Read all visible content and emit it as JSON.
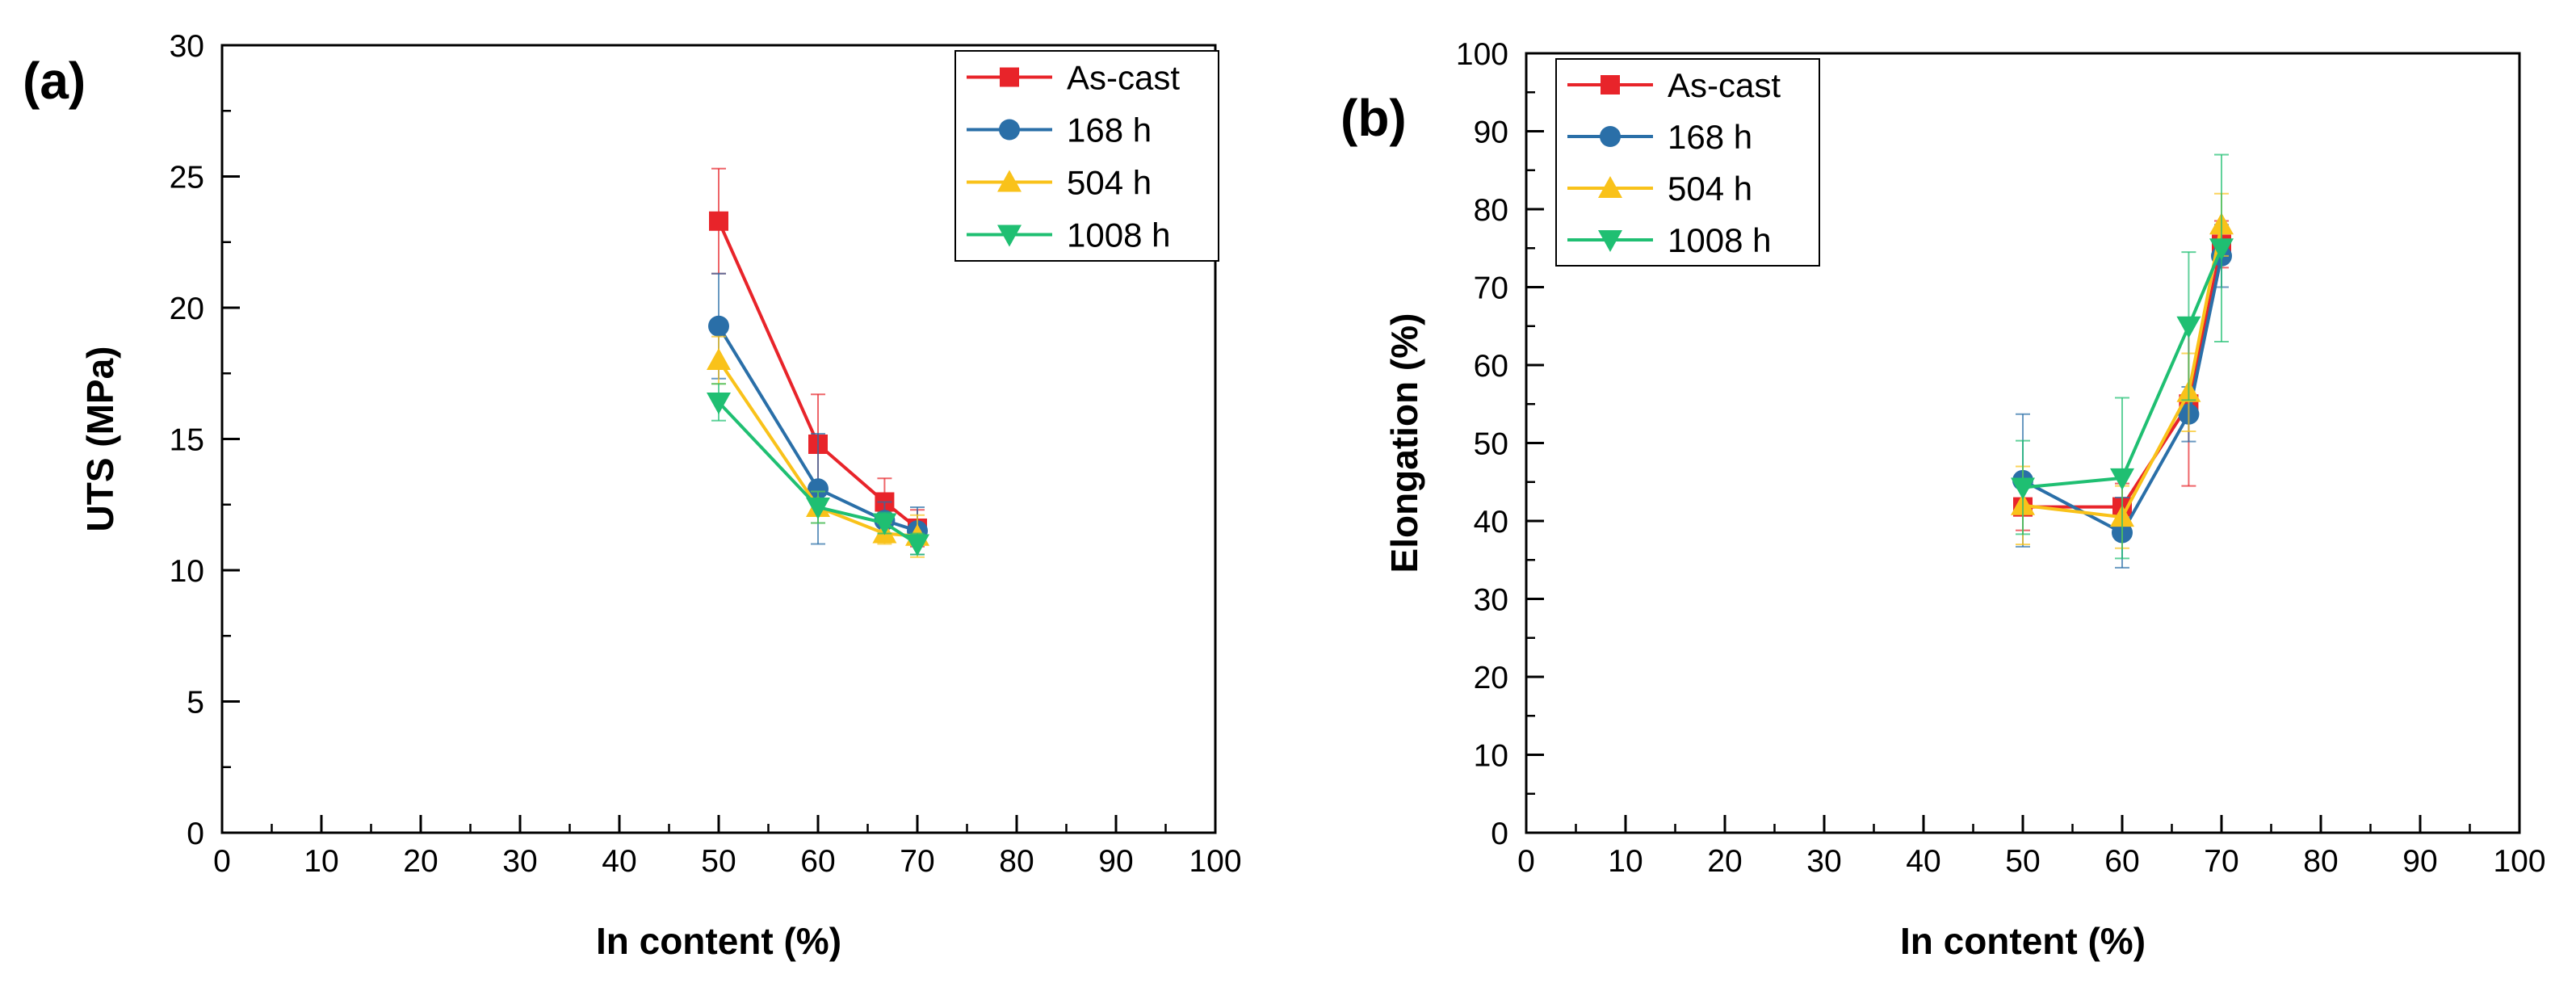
{
  "chart_data": [
    {
      "type": "line",
      "panel_label": "(a)",
      "xlabel": "In content (%)",
      "ylabel": "UTS (MPa)",
      "xlim": [
        0,
        100
      ],
      "ylim": [
        0,
        30
      ],
      "xticks": [
        0,
        10,
        20,
        30,
        40,
        50,
        60,
        70,
        80,
        90,
        100
      ],
      "yticks": [
        0,
        5,
        10,
        15,
        20,
        25,
        30
      ],
      "legend_position": "top-right",
      "grid": false,
      "x": [
        50,
        60,
        66.7,
        70
      ],
      "series": [
        {
          "name": "As-cast",
          "color": "#e8242a",
          "marker": "square",
          "values": [
            23.3,
            14.8,
            12.6,
            11.6
          ],
          "errors": [
            2.0,
            1.9,
            0.9,
            0.7
          ]
        },
        {
          "name": "168 h",
          "color": "#2a6fa8",
          "marker": "circle",
          "values": [
            19.3,
            13.1,
            11.9,
            11.5
          ],
          "errors": [
            2.0,
            2.1,
            0.7,
            0.9
          ]
        },
        {
          "name": "504 h",
          "color": "#f9c21a",
          "marker": "triangle-up",
          "values": [
            18.0,
            12.4,
            11.4,
            11.3
          ],
          "errors": [
            0.9,
            0.6,
            0.4,
            0.8
          ]
        },
        {
          "name": "1008 h",
          "color": "#1fbf72",
          "marker": "triangle-down",
          "values": [
            16.4,
            12.4,
            11.8,
            11.0
          ],
          "errors": [
            0.7,
            0.6,
            0.4,
            0.4
          ]
        }
      ]
    },
    {
      "type": "line",
      "panel_label": "(b)",
      "xlabel": "In content (%)",
      "ylabel": "Elongation (%)",
      "xlim": [
        0,
        100
      ],
      "ylim": [
        0,
        100
      ],
      "xticks": [
        0,
        10,
        20,
        30,
        40,
        50,
        60,
        70,
        80,
        90,
        100
      ],
      "yticks": [
        0,
        10,
        20,
        30,
        40,
        50,
        60,
        70,
        80,
        90,
        100
      ],
      "legend_position": "top-left",
      "grid": false,
      "x": [
        50,
        60,
        66.7,
        70
      ],
      "series": [
        {
          "name": "As-cast",
          "color": "#e8242a",
          "marker": "square",
          "values": [
            41.8,
            41.8,
            55.0,
            75.5
          ],
          "errors": [
            3.0,
            3.0,
            10.5,
            3.0
          ]
        },
        {
          "name": "168 h",
          "color": "#2a6fa8",
          "marker": "circle",
          "values": [
            45.2,
            38.5,
            53.7,
            74.0
          ],
          "errors": [
            8.5,
            4.5,
            3.5,
            4.0
          ]
        },
        {
          "name": "504 h",
          "color": "#f9c21a",
          "marker": "triangle-up",
          "values": [
            42.0,
            40.5,
            56.5,
            78.0
          ],
          "errors": [
            5.0,
            4.0,
            5.0,
            4.0
          ]
        },
        {
          "name": "1008 h",
          "color": "#1fbf72",
          "marker": "triangle-down",
          "values": [
            44.3,
            45.5,
            65.0,
            75.0
          ],
          "errors": [
            6.0,
            10.3,
            9.5,
            12.0
          ]
        }
      ]
    }
  ]
}
